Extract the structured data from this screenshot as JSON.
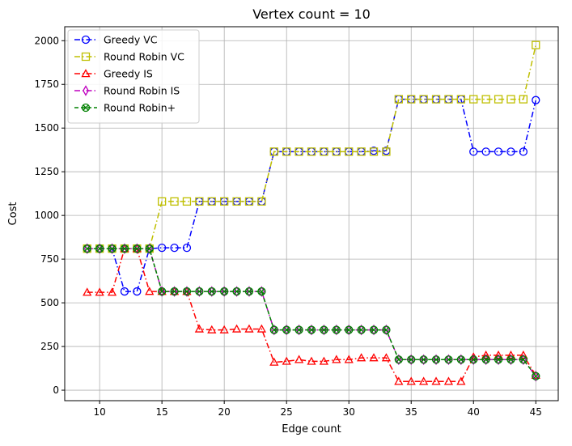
{
  "chart_data": {
    "type": "line",
    "title": "Vertex count = 10",
    "xlabel": "Edge count",
    "ylabel": "Cost",
    "xlim": [
      7.2,
      46.8
    ],
    "ylim": [
      -60,
      2080
    ],
    "xticks": [
      10,
      15,
      20,
      25,
      30,
      35,
      40,
      45
    ],
    "yticks": [
      0,
      250,
      500,
      750,
      1000,
      1250,
      1500,
      1750,
      2000
    ],
    "grid": true,
    "legend_position": "upper left",
    "x": [
      9,
      10,
      11,
      12,
      13,
      14,
      15,
      16,
      17,
      18,
      19,
      20,
      21,
      22,
      23,
      24,
      25,
      26,
      27,
      28,
      29,
      30,
      31,
      32,
      33,
      34,
      35,
      36,
      37,
      38,
      39,
      40,
      41,
      42,
      43,
      44,
      45
    ],
    "series": [
      {
        "name": "Greedy VC",
        "color": "#0000ff",
        "marker": "circle",
        "dash": "dashdot",
        "values": [
          810,
          810,
          810,
          565,
          565,
          810,
          815,
          815,
          815,
          1080,
          1080,
          1080,
          1080,
          1080,
          1080,
          1365,
          1365,
          1365,
          1365,
          1365,
          1365,
          1365,
          1365,
          1370,
          1370,
          1665,
          1665,
          1665,
          1665,
          1665,
          1665,
          1365,
          1365,
          1365,
          1365,
          1365,
          1660
        ]
      },
      {
        "name": "Round Robin VC",
        "color": "#bfbf00",
        "marker": "square",
        "dash": "dashdot",
        "values": [
          810,
          810,
          810,
          810,
          810,
          810,
          1080,
          1080,
          1080,
          1080,
          1080,
          1080,
          1080,
          1080,
          1080,
          1365,
          1365,
          1365,
          1365,
          1365,
          1365,
          1365,
          1365,
          1365,
          1365,
          1665,
          1665,
          1665,
          1665,
          1665,
          1665,
          1665,
          1665,
          1665,
          1665,
          1665,
          1975
        ]
      },
      {
        "name": "Greedy IS",
        "color": "#ff0000",
        "marker": "triangle",
        "dash": "dashdot",
        "values": [
          560,
          560,
          560,
          810,
          810,
          565,
          565,
          565,
          565,
          350,
          345,
          345,
          350,
          350,
          350,
          160,
          165,
          175,
          165,
          165,
          175,
          175,
          185,
          185,
          185,
          50,
          50,
          50,
          50,
          50,
          50,
          190,
          200,
          200,
          200,
          200,
          85
        ]
      },
      {
        "name": "Round Robin IS",
        "color": "#bf00bf",
        "marker": "diamond",
        "dash": "dashdot",
        "values": [
          810,
          810,
          810,
          810,
          810,
          810,
          565,
          565,
          565,
          565,
          565,
          565,
          565,
          565,
          565,
          345,
          345,
          345,
          345,
          345,
          345,
          345,
          345,
          345,
          345,
          175,
          175,
          175,
          175,
          175,
          175,
          175,
          175,
          175,
          175,
          175,
          80
        ]
      },
      {
        "name": "Round Robin+",
        "color": "#008000",
        "marker": "xcircle",
        "dash": "dashed",
        "values": [
          810,
          810,
          810,
          810,
          810,
          810,
          565,
          565,
          565,
          565,
          565,
          565,
          565,
          565,
          565,
          345,
          345,
          345,
          345,
          345,
          345,
          345,
          345,
          345,
          345,
          175,
          175,
          175,
          175,
          175,
          175,
          175,
          175,
          175,
          175,
          175,
          80
        ]
      }
    ]
  }
}
